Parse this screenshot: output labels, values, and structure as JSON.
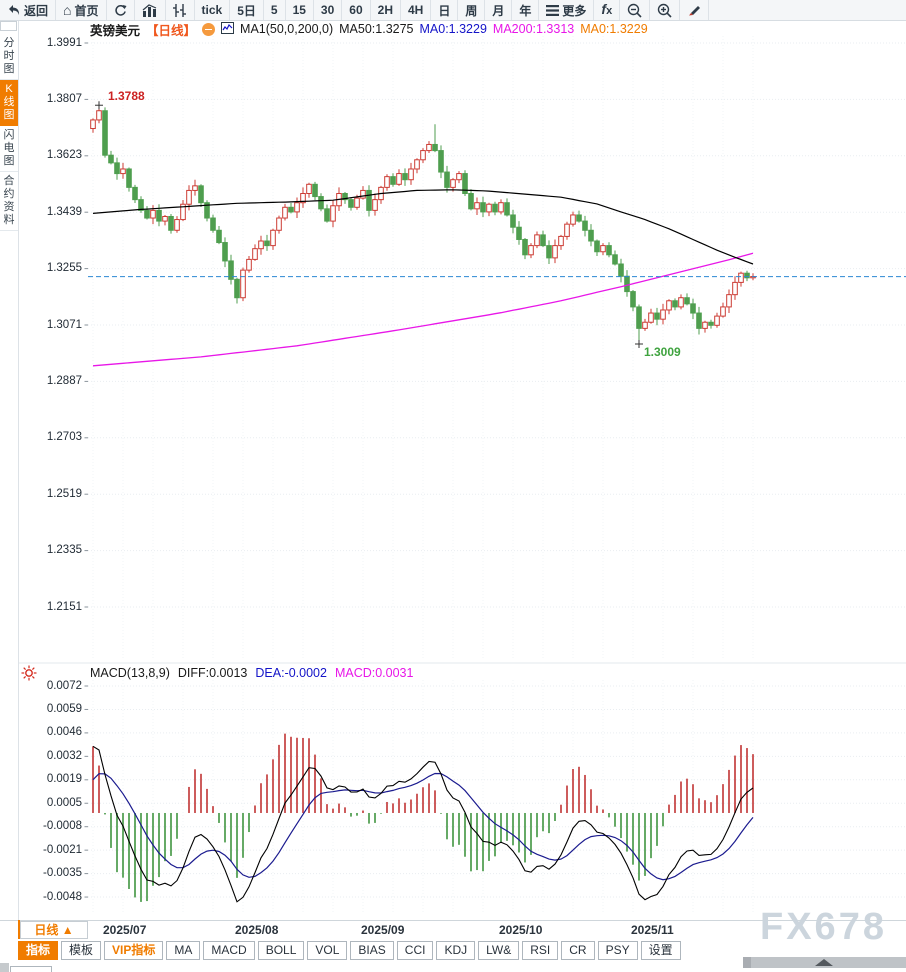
{
  "toolbar": {
    "items": [
      {
        "id": "back",
        "label": "返回",
        "icon": "back"
      },
      {
        "id": "home",
        "label": "首页",
        "icon": "home"
      },
      {
        "id": "refresh",
        "label": "",
        "icon": "refresh"
      },
      {
        "id": "bar-chart",
        "label": "",
        "icon": "bars"
      },
      {
        "id": "candle-chart",
        "label": "",
        "icon": "candles"
      },
      {
        "id": "tick",
        "label": "tick",
        "icon": ""
      },
      {
        "id": "5d",
        "label": "5日",
        "icon": ""
      },
      {
        "id": "m5",
        "label": "5",
        "icon": ""
      },
      {
        "id": "m15",
        "label": "15",
        "icon": ""
      },
      {
        "id": "m30",
        "label": "30",
        "icon": ""
      },
      {
        "id": "m60",
        "label": "60",
        "icon": ""
      },
      {
        "id": "h2",
        "label": "2H",
        "icon": ""
      },
      {
        "id": "h4",
        "label": "4H",
        "icon": ""
      },
      {
        "id": "day",
        "label": "日",
        "icon": ""
      },
      {
        "id": "week",
        "label": "周",
        "icon": ""
      },
      {
        "id": "month",
        "label": "月",
        "icon": ""
      },
      {
        "id": "year",
        "label": "年",
        "icon": ""
      },
      {
        "id": "more",
        "label": "更多",
        "icon": "menu"
      },
      {
        "id": "fx",
        "label": "",
        "icon": "fx"
      },
      {
        "id": "zoom-out",
        "label": "",
        "icon": "zoom-out"
      },
      {
        "id": "zoom-in",
        "label": "",
        "icon": "zoom-in"
      },
      {
        "id": "draw",
        "label": "",
        "icon": "pencil"
      }
    ]
  },
  "sidebar": {
    "items": [
      {
        "label": "分时图",
        "active": false
      },
      {
        "label": "K线图",
        "active": true
      },
      {
        "label": "闪电图",
        "active": false
      },
      {
        "label": "合约资料",
        "active": false
      }
    ]
  },
  "chart_header": {
    "symbol": "英镑美元",
    "period": "【日线】",
    "ma_group": "MA1(50,0,200,0)",
    "ma50": "MA50:1.3275",
    "ma0_short": "MA0:1.3229",
    "ma200": "MA200:1.3313",
    "ma0_long": "MA0:1.3229"
  },
  "macd_header": {
    "name": "MACD(13,8,9)",
    "diff": "DIFF:0.0013",
    "dea": "DEA:-0.0002",
    "macd": "MACD:0.0031"
  },
  "bottom": {
    "period_button": "日线 ▲",
    "watermark": "FX678",
    "tabs": [
      {
        "label": "指标",
        "active": true,
        "accent": false
      },
      {
        "label": "模板",
        "active": false,
        "accent": false
      },
      {
        "label": "VIP指标",
        "active": false,
        "accent": true
      },
      {
        "label": "MA",
        "active": false,
        "accent": false
      },
      {
        "label": "MACD",
        "active": false,
        "accent": false
      },
      {
        "label": "BOLL",
        "active": false,
        "accent": false
      },
      {
        "label": "VOL",
        "active": false,
        "accent": false
      },
      {
        "label": "BIAS",
        "active": false,
        "accent": false
      },
      {
        "label": "CCI",
        "active": false,
        "accent": false
      },
      {
        "label": "KDJ",
        "active": false,
        "accent": false
      },
      {
        "label": "LW&",
        "active": false,
        "accent": false
      },
      {
        "label": "RSI",
        "active": false,
        "accent": false
      },
      {
        "label": "CR",
        "active": false,
        "accent": false
      },
      {
        "label": "PSY",
        "active": false,
        "accent": false
      },
      {
        "label": "设置",
        "active": false,
        "accent": false
      }
    ]
  },
  "chart_data": {
    "type": "candlestick",
    "symbol": "英镑美元 (GBP/USD)",
    "period": "日线",
    "x_axis": {
      "months": [
        {
          "label": "2025/07",
          "index": 2
        },
        {
          "label": "2025/08",
          "index": 24
        },
        {
          "label": "2025/09",
          "index": 45
        },
        {
          "label": "2025/10",
          "index": 68
        },
        {
          "label": "2025/11",
          "index": 90
        }
      ]
    },
    "y_axis": {
      "labels": [
        "1.3991",
        "1.3807",
        "1.3623",
        "1.3439",
        "1.3255",
        "1.3071",
        "1.2887",
        "1.2703",
        "1.2519",
        "1.2335",
        "1.2151"
      ],
      "top_value": 1.3991,
      "step": 0.0184
    },
    "candles": {
      "open0": 1.3712,
      "closes": [
        1.374,
        1.377,
        1.3625,
        1.36,
        1.3565,
        1.358,
        1.352,
        1.348,
        1.3445,
        1.342,
        1.3445,
        1.341,
        1.3425,
        1.338,
        1.3415,
        1.3465,
        1.351,
        1.3525,
        1.347,
        1.342,
        1.338,
        1.334,
        1.328,
        1.322,
        1.316,
        1.325,
        1.3285,
        1.332,
        1.3345,
        1.333,
        1.338,
        1.342,
        1.3455,
        1.344,
        1.347,
        1.35,
        1.353,
        1.349,
        1.345,
        1.341,
        1.346,
        1.35,
        1.348,
        1.3455,
        1.3485,
        1.351,
        1.3445,
        1.348,
        1.352,
        1.3555,
        1.353,
        1.3565,
        1.3545,
        1.358,
        1.361,
        1.364,
        1.366,
        1.364,
        1.357,
        1.352,
        1.3545,
        1.3565,
        1.35,
        1.345,
        1.347,
        1.344,
        1.3465,
        1.344,
        1.347,
        1.343,
        1.339,
        1.335,
        1.33,
        1.333,
        1.3365,
        1.333,
        1.329,
        1.333,
        1.336,
        1.34,
        1.343,
        1.341,
        1.338,
        1.3345,
        1.331,
        1.333,
        1.33,
        1.327,
        1.323,
        1.318,
        1.313,
        1.306,
        1.308,
        1.311,
        1.309,
        1.312,
        1.315,
        1.313,
        1.316,
        1.314,
        1.311,
        1.306,
        1.308,
        1.307,
        1.31,
        1.313,
        1.317,
        1.321,
        1.324,
        1.3225,
        1.3229
      ],
      "wick_overrides": {
        "1": {
          "high": 1.3788
        },
        "24": {
          "low": 1.3141
        },
        "57": {
          "high": 1.3726
        },
        "91": {
          "low": 1.3009
        },
        "101": {
          "low": 1.304
        }
      }
    },
    "overlays": {
      "ma50": {
        "color": "#000000",
        "points": [
          [
            0,
            1.3435
          ],
          [
            8,
            1.3448
          ],
          [
            16,
            1.3458
          ],
          [
            24,
            1.3468
          ],
          [
            32,
            1.3472
          ],
          [
            40,
            1.3478
          ],
          [
            48,
            1.35
          ],
          [
            54,
            1.351
          ],
          [
            60,
            1.3512
          ],
          [
            66,
            1.3508
          ],
          [
            72,
            1.3498
          ],
          [
            78,
            1.3488
          ],
          [
            84,
            1.3466
          ],
          [
            88,
            1.344
          ],
          [
            92,
            1.3415
          ],
          [
            96,
            1.3385
          ],
          [
            100,
            1.335
          ],
          [
            104,
            1.3315
          ],
          [
            107,
            1.3292
          ],
          [
            110,
            1.327
          ]
        ]
      },
      "ma200": {
        "color": "#e817e8",
        "points": [
          [
            0,
            1.2938
          ],
          [
            18,
            1.2967
          ],
          [
            34,
            1.3003
          ],
          [
            51,
            1.3055
          ],
          [
            68,
            1.3111
          ],
          [
            78,
            1.315
          ],
          [
            88,
            1.3196
          ],
          [
            98,
            1.3245
          ],
          [
            106,
            1.3284
          ],
          [
            110,
            1.3305
          ]
        ]
      },
      "current_price": {
        "value": 1.3229,
        "color": "#2b87d3"
      }
    },
    "markers": {
      "high": {
        "index": 1,
        "price": 1.3788,
        "label": "1.3788",
        "color": "#cc2222"
      },
      "low": {
        "index": 91,
        "price": 1.3009,
        "label": "1.3009",
        "color": "#3fa33f"
      }
    },
    "macd": {
      "params": "MACD(13,8,9)",
      "diff": 0.0013,
      "dea": -0.0002,
      "macd": 0.0031,
      "y_axis": {
        "labels": [
          "0.0072",
          "0.0059",
          "0.0046",
          "0.0032",
          "0.0019",
          "0.0005",
          "-0.0008",
          "-0.0021",
          "-0.0035",
          "-0.0048"
        ],
        "top_value": 0.00724,
        "step": 0.001337
      },
      "colors": {
        "hist_up": "#c84b4b",
        "hist_down": "#56a156",
        "diff_line": "#000000",
        "dea_line": "#1b1b8f"
      }
    },
    "colors": {
      "up": "#cc3b33",
      "down": "#4f9e4f",
      "grid": "#e9edf1"
    }
  }
}
